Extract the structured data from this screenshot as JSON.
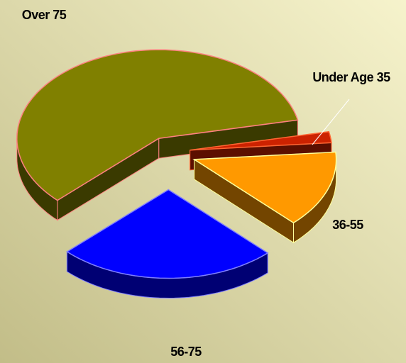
{
  "chart_data": {
    "type": "pie",
    "categories": [
      "Under Age 35",
      "36-55",
      "56-75",
      "Over 75"
    ],
    "values": [
      2,
      14,
      25,
      59
    ],
    "colors": [
      "#cc2200",
      "#ff9900",
      "#0000ff",
      "#808000"
    ],
    "edge_colors": [
      "#ff6633",
      "#ffff99",
      "#8080ff",
      "#ff8080"
    ]
  }
}
